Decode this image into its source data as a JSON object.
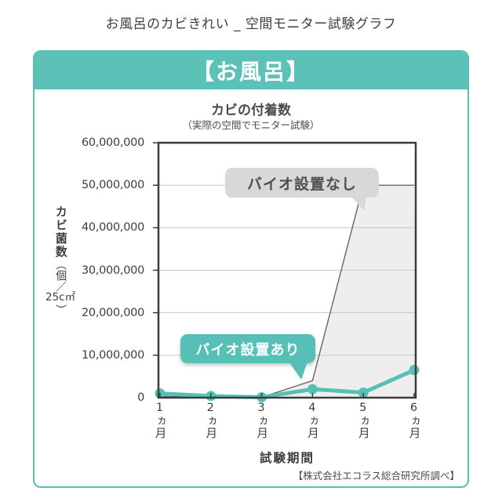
{
  "page": {
    "title": "お風呂のカビきれい _ 空間モニター試験グラフ"
  },
  "card": {
    "header": "【お風呂】",
    "accent_color": "#57c0b6"
  },
  "chart_data": {
    "type": "line",
    "title": "カビの付着数",
    "subtitle": "（実際の空間でモニター試験）",
    "xlabel": "試験期間",
    "ylabel": "カビ菌数",
    "ylabel_unit_open": "（個／",
    "ylabel_unit_value": "25c㎡",
    "ylabel_unit_close": "）",
    "ylim": [
      0,
      60000000
    ],
    "ytick_interval": 10000000,
    "ytick_labels": [
      "60,000,000",
      "50,000,000",
      "40,000,000",
      "30,000,000",
      "20,000,000",
      "10,000,000",
      "0"
    ],
    "categories": [
      "1ヵ月",
      "2ヵ月",
      "3ヵ月",
      "4ヵ月",
      "5ヵ月",
      "6ヵ月"
    ],
    "grid": true,
    "series": [
      {
        "name": "バイオ設置なし",
        "type": "area",
        "color": "#666666",
        "fill": "#eeeeee",
        "values": [
          300000,
          200000,
          100000,
          4000000,
          50000000,
          50000000
        ]
      },
      {
        "name": "バイオ設置あり",
        "type": "line",
        "color": "#57c0b6",
        "values": [
          1000000,
          400000,
          100000,
          2000000,
          1200000,
          6500000
        ]
      }
    ],
    "annotations": {
      "no_bio": {
        "label": "バイオ設置なし",
        "bg": "#d8d8d8",
        "text_color": "#4f4f4f"
      },
      "bio": {
        "label": "バイオ設置あり",
        "bg": "#57c0b6",
        "text_color": "#ffffff"
      }
    }
  },
  "footer": {
    "source": "【株式会社エコラス総合研究所調べ】"
  }
}
